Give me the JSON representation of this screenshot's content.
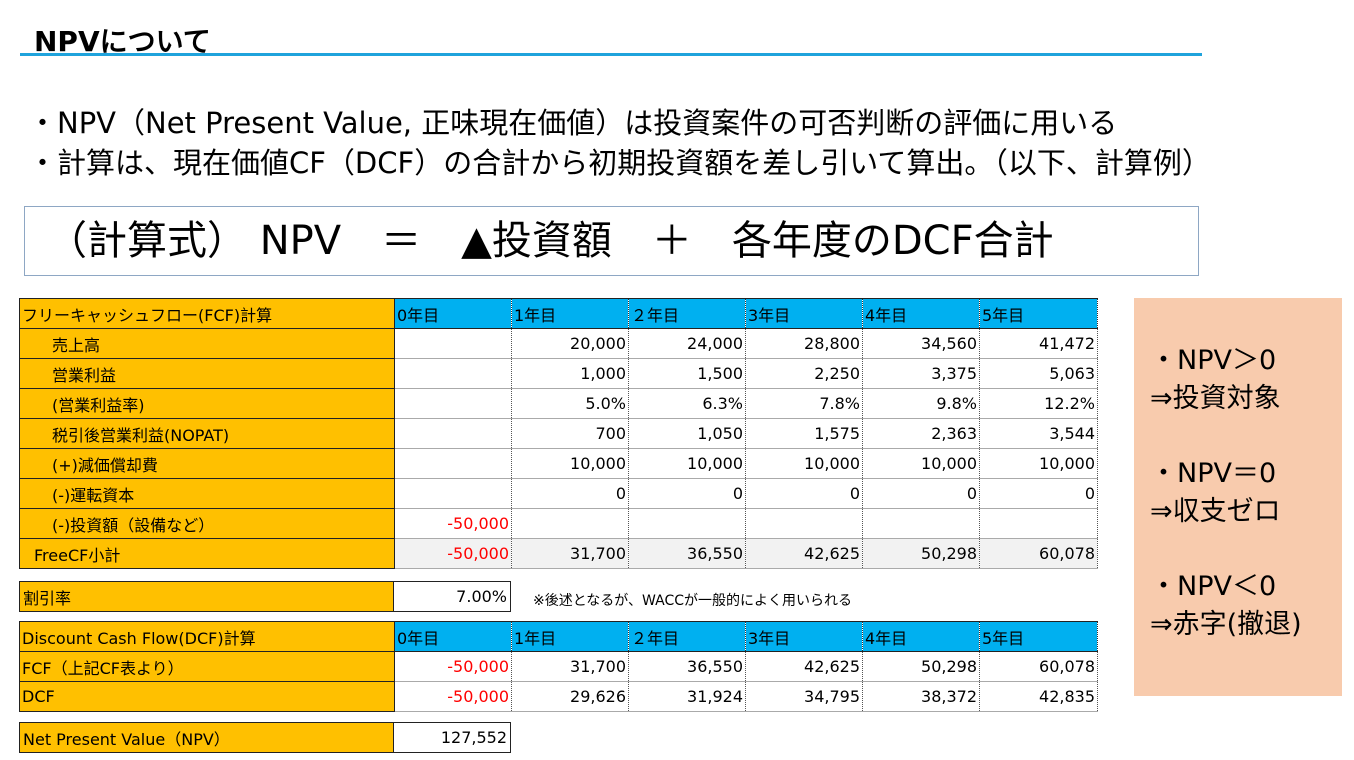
{
  "title": "NPVについて",
  "bullets": [
    "・NPV（Net Present Value, 正味現在価値）は投資案件の可否判断の評価に用いる",
    "・計算は、現在価値CF（DCF）の合計から初期投資額を差し引いて算出。（以下、計算例）"
  ],
  "formula": "（計算式） NPV　＝　▲投資額　＋　各年度のDCF合計",
  "fcf_table": {
    "header": [
      "フリーキャッシュフロー(FCF)計算",
      "0年目",
      "1年目",
      "２年目",
      "3年目",
      "4年目",
      "5年目"
    ],
    "rows": [
      {
        "label": "売上高",
        "cells": [
          "",
          "20,000",
          "24,000",
          "28,800",
          "34,560",
          "41,472"
        ]
      },
      {
        "label": "営業利益",
        "cells": [
          "",
          "1,000",
          "1,500",
          "2,250",
          "3,375",
          "5,063"
        ]
      },
      {
        "label": "(営業利益率)",
        "cells": [
          "",
          "5.0%",
          "6.3%",
          "7.8%",
          "9.8%",
          "12.2%"
        ]
      },
      {
        "label": "税引後営業利益(NOPAT)",
        "cells": [
          "",
          "700",
          "1,050",
          "1,575",
          "2,363",
          "3,544"
        ]
      },
      {
        "label": "(+)減価償却費",
        "cells": [
          "",
          "10,000",
          "10,000",
          "10,000",
          "10,000",
          "10,000"
        ]
      },
      {
        "label": "(-)運転資本",
        "cells": [
          "",
          "0",
          "0",
          "0",
          "0",
          "0"
        ]
      },
      {
        "label": "(-)投資額（設備など）",
        "cells": [
          "-50,000",
          "",
          "",
          "",
          "",
          ""
        ]
      },
      {
        "label": "FreeCF小計",
        "cells": [
          "-50,000",
          "31,700",
          "36,550",
          "42,625",
          "50,298",
          "60,078"
        ]
      }
    ]
  },
  "discount": {
    "label": "割引率",
    "value": "7.00%",
    "note": "※後述となるが、WACCが一般的によく用いられる"
  },
  "dcf_table": {
    "header": [
      "Discount Cash Flow(DCF)計算",
      "0年目",
      "1年目",
      "２年目",
      "3年目",
      "4年目",
      "5年目"
    ],
    "rows": [
      {
        "label": "FCF（上記CF表より）",
        "cells": [
          "-50,000",
          "31,700",
          "36,550",
          "42,625",
          "50,298",
          "60,078"
        ]
      },
      {
        "label": "DCF",
        "cells": [
          "-50,000",
          "29,626",
          "31,924",
          "34,795",
          "38,372",
          "42,835"
        ]
      }
    ]
  },
  "npv": {
    "label": "Net Present Value（NPV）",
    "value": "127,552"
  },
  "side": [
    {
      "line1": "・NPV＞0",
      "line2": "⇒投資対象"
    },
    {
      "line1": "・NPV＝0",
      "line2": "⇒収支ゼロ"
    },
    {
      "line1": "・NPV＜0",
      "line2": "⇒赤字(撤退)"
    }
  ]
}
